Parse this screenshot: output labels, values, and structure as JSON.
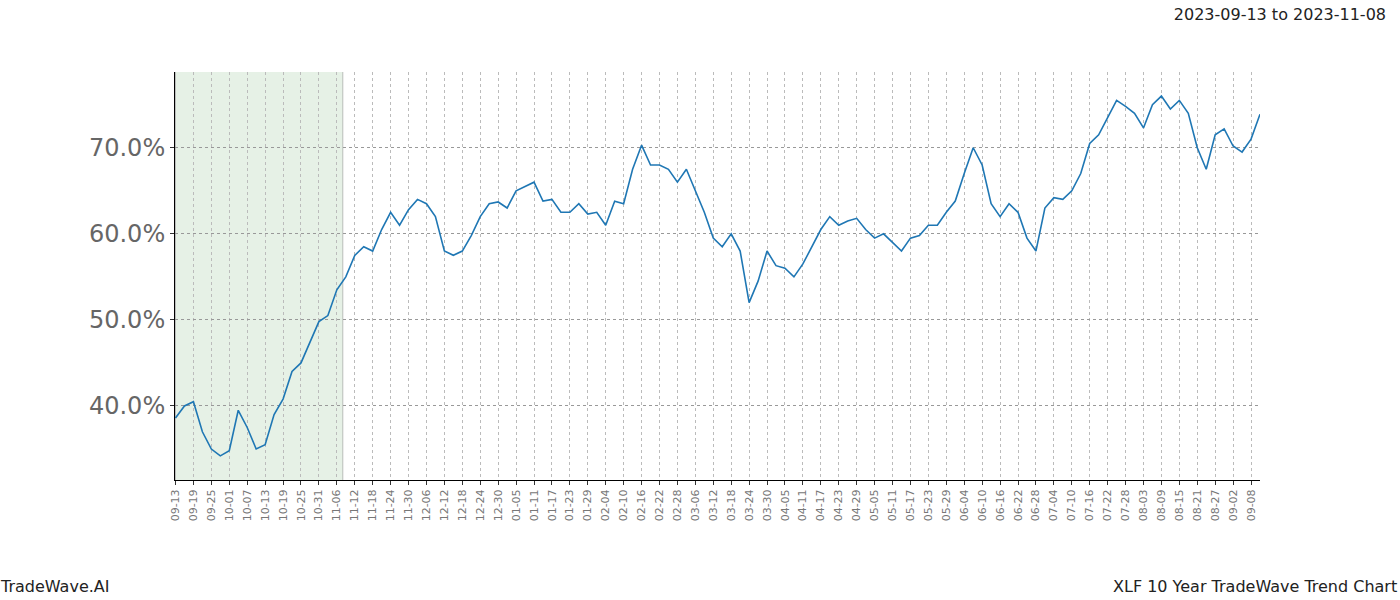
{
  "chart_data": {
    "type": "line",
    "title": "2023-09-13 to 2023-11-08",
    "footer_left": "TradeWave.AI",
    "footer_right": "XLF 10 Year TradeWave Trend Chart",
    "highlight": [
      "09-13",
      "11-08"
    ],
    "categories": [
      "09-13",
      null,
      "09-19",
      null,
      "09-25",
      null,
      "10-01",
      null,
      "10-07",
      null,
      "10-13",
      null,
      "10-19",
      null,
      "10-25",
      null,
      "10-31",
      null,
      "11-06",
      null,
      "11-12",
      null,
      "11-18",
      null,
      "11-24",
      null,
      "11-30",
      null,
      "12-06",
      null,
      "12-12",
      null,
      "12-18",
      null,
      "12-24",
      null,
      "12-30",
      null,
      "01-05",
      null,
      "01-11",
      null,
      "01-17",
      null,
      "01-23",
      null,
      "01-29",
      null,
      "02-04",
      null,
      "02-10",
      null,
      "02-16",
      null,
      "02-22",
      null,
      "02-28",
      null,
      "03-06",
      null,
      "03-12",
      null,
      "03-18",
      null,
      "03-24",
      null,
      "03-30",
      null,
      "04-05",
      null,
      "04-11",
      null,
      "04-17",
      null,
      "04-23",
      null,
      "04-29",
      null,
      "05-05",
      null,
      "05-11",
      null,
      "05-17",
      null,
      "05-23",
      null,
      "05-29",
      null,
      "06-04",
      null,
      "06-10",
      null,
      "06-16",
      null,
      "06-22",
      null,
      "06-28",
      null,
      "07-04",
      null,
      "07-10",
      null,
      "07-16",
      null,
      "07-22",
      null,
      "07-28",
      null,
      "08-03",
      null,
      "08-09",
      null,
      "08-15",
      null,
      "08-21",
      null,
      "08-27",
      null,
      "09-02",
      null,
      "09-08",
      null
    ],
    "values": [
      38.6,
      40,
      40.5,
      37,
      35,
      34.2,
      34.8,
      39.5,
      37.5,
      35,
      35.5,
      39,
      40.8,
      44,
      45,
      47.3,
      49.8,
      50.5,
      53.5,
      55,
      57.5,
      58.5,
      58,
      60.5,
      62.5,
      61,
      62.8,
      64,
      63.5,
      62,
      58,
      57.5,
      58,
      59.8,
      62,
      63.5,
      63.7,
      63,
      65,
      65.5,
      66,
      63.8,
      64,
      62.5,
      62.5,
      63.5,
      62.3,
      62.5,
      61,
      63.8,
      63.5,
      67.5,
      70.3,
      68,
      68,
      67.5,
      66,
      67.5,
      65,
      62.5,
      59.5,
      58.5,
      60,
      58,
      52,
      54.5,
      58,
      56.3,
      56,
      55,
      56.5,
      58.5,
      60.5,
      62,
      61,
      61.5,
      61.8,
      60.5,
      59.5,
      60,
      59,
      58,
      59.5,
      59.8,
      61,
      61,
      62.5,
      63.8,
      67,
      70,
      68,
      63.5,
      62,
      63.5,
      62.5,
      59.5,
      58,
      63,
      64.2,
      64,
      65,
      67,
      70.5,
      71.5,
      73.5,
      75.5,
      74.8,
      74,
      72.3,
      75,
      76,
      74.5,
      75.5,
      74,
      70,
      67.5,
      71.5,
      72.2,
      70.2,
      69.5,
      71,
      73.9
    ],
    "color": "#1f77b4",
    "ylim": [
      31.4,
      78.8
    ],
    "yticks": [
      {
        "value": 40,
        "label": "40.0%"
      },
      {
        "value": 50,
        "label": "50.0%"
      },
      {
        "value": 60,
        "label": "60.0%"
      },
      {
        "value": 70,
        "label": "70.0%"
      }
    ],
    "grid": true
  }
}
